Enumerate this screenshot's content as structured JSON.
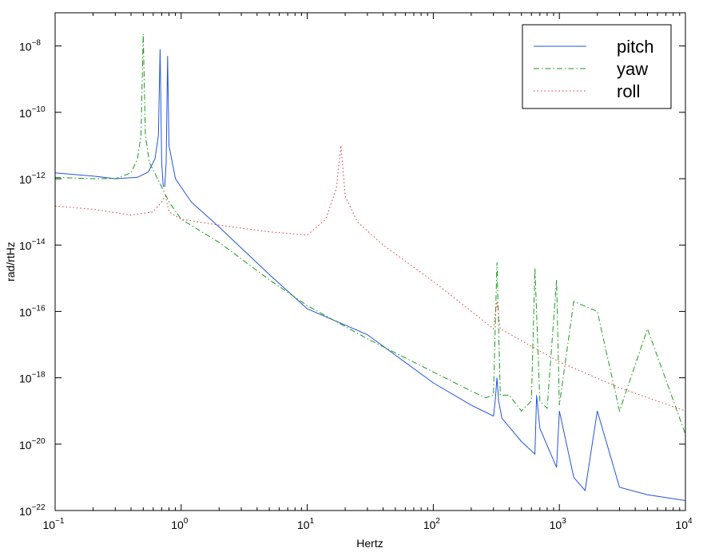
{
  "chart_data": {
    "type": "line",
    "xlabel": "Hertz",
    "ylabel": "rad/rtHz",
    "xscale": "log",
    "yscale": "log",
    "xlim": [
      0.1,
      10000
    ],
    "ylim": [
      1e-22,
      1e-07
    ],
    "grid": false,
    "legend_position": "top-right",
    "x_ticks": [
      {
        "value": 0.1,
        "base": "10",
        "exp": "−1"
      },
      {
        "value": 1,
        "base": "10",
        "exp": "0"
      },
      {
        "value": 10,
        "base": "10",
        "exp": "1"
      },
      {
        "value": 100,
        "base": "10",
        "exp": "2"
      },
      {
        "value": 1000,
        "base": "10",
        "exp": "3"
      },
      {
        "value": 10000,
        "base": "10",
        "exp": "4"
      }
    ],
    "y_ticks": [
      {
        "value": 1e-22,
        "base": "10",
        "exp": "−22"
      },
      {
        "value": 1e-20,
        "base": "10",
        "exp": "−20"
      },
      {
        "value": 1e-18,
        "base": "10",
        "exp": "−18"
      },
      {
        "value": 1e-16,
        "base": "10",
        "exp": "−16"
      },
      {
        "value": 1e-14,
        "base": "10",
        "exp": "−14"
      },
      {
        "value": 1e-12,
        "base": "10",
        "exp": "−12"
      },
      {
        "value": 1e-10,
        "base": "10",
        "exp": "−10"
      },
      {
        "value": 1e-08,
        "base": "10",
        "exp": "−8"
      }
    ],
    "series": [
      {
        "name": "pitch",
        "color": "#2255e0",
        "style": "solid",
        "x": [
          0.1,
          0.2,
          0.3,
          0.45,
          0.55,
          0.62,
          0.66,
          0.68,
          0.7,
          0.72,
          0.74,
          0.76,
          0.78,
          0.8,
          0.9,
          1.2,
          2,
          5,
          10,
          30,
          100,
          200,
          300,
          310,
          320,
          330,
          350,
          500,
          640,
          660,
          700,
          950,
          1000,
          1300,
          1600,
          2000,
          3000,
          5000,
          10000
        ],
        "y": [
          1.5e-12,
          1.2e-12,
          1e-12,
          1.1e-12,
          1.6e-12,
          4e-12,
          2e-11,
          8e-09,
          3e-12,
          6e-13,
          6e-13,
          3e-12,
          5e-09,
          1e-11,
          1e-12,
          2e-13,
          3.5e-14,
          1.3e-15,
          1.2e-16,
          2e-17,
          7e-19,
          1.5e-19,
          7e-20,
          2e-19,
          1e-18,
          2e-19,
          6e-20,
          1.2e-20,
          5e-21,
          3e-19,
          3e-20,
          2e-21,
          1e-19,
          1e-21,
          4e-22,
          1e-19,
          5e-22,
          3e-22,
          2e-22
        ]
      },
      {
        "name": "yaw",
        "color": "#1a9a1a",
        "style": "dashdot",
        "x": [
          0.1,
          0.2,
          0.3,
          0.4,
          0.45,
          0.48,
          0.5,
          0.52,
          0.56,
          0.65,
          0.8,
          1,
          2,
          5,
          10,
          30,
          100,
          200,
          260,
          300,
          320,
          340,
          400,
          500,
          600,
          640,
          700,
          800,
          950,
          1000,
          1300,
          2000,
          3000,
          5000,
          10000
        ],
        "y": [
          1.1e-12,
          1e-12,
          1e-12,
          1.5e-12,
          4e-12,
          2e-11,
          2.3e-08,
          2e-11,
          3e-12,
          1e-12,
          2e-13,
          6e-14,
          1.2e-14,
          9e-16,
          1.5e-16,
          1.5e-17,
          1.5e-18,
          4e-19,
          2.5e-19,
          3e-19,
          3e-15,
          3e-19,
          3e-19,
          1e-19,
          2e-19,
          2e-15,
          2e-19,
          1.2e-19,
          9e-16,
          1.5e-19,
          2e-16,
          1e-16,
          1e-19,
          3e-17,
          2e-20
        ]
      },
      {
        "name": "roll",
        "color": "#e03030",
        "style": "dotted",
        "x": [
          0.1,
          0.2,
          0.4,
          0.6,
          0.7,
          0.75,
          0.8,
          1,
          2,
          5,
          10,
          14,
          17,
          18.5,
          20,
          25,
          40,
          100,
          300,
          320,
          340,
          1000,
          3000,
          10000
        ],
        "y": [
          1.5e-13,
          1.2e-13,
          8e-14,
          1e-13,
          2e-13,
          3e-13,
          1e-13,
          6e-14,
          4e-14,
          2.5e-14,
          2e-14,
          6e-14,
          5e-13,
          1e-11,
          3e-13,
          5e-14,
          1e-14,
          8e-16,
          3e-17,
          2e-16,
          3e-17,
          3e-18,
          5e-19,
          1e-19
        ]
      }
    ]
  }
}
